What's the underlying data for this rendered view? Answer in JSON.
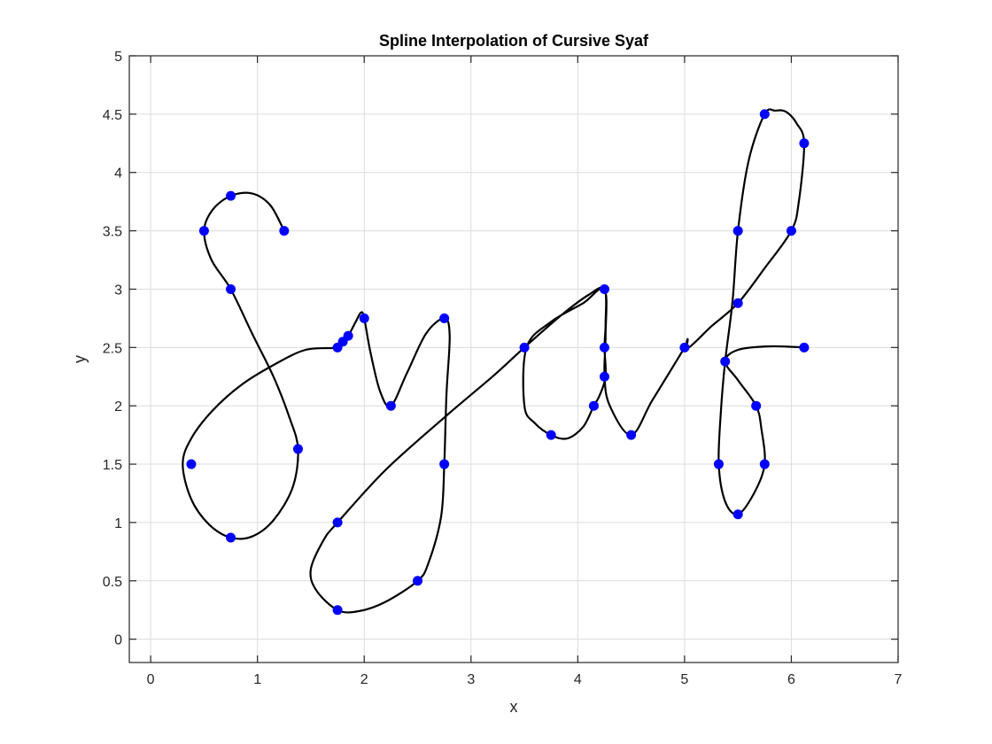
{
  "chart_data": {
    "type": "line",
    "title": "Spline Interpolation of Cursive Syaf",
    "xlabel": "x",
    "ylabel": "y",
    "xlim": [
      -0.2,
      7
    ],
    "ylim": [
      -0.2,
      5
    ],
    "xticks": [
      "0",
      "1",
      "2",
      "3",
      "4",
      "5",
      "6",
      "7"
    ],
    "yticks": [
      "0",
      "0.5",
      "1",
      "1.5",
      "2",
      "2.5",
      "3",
      "3.5",
      "4",
      "4.5",
      "5"
    ],
    "grid": true,
    "colors": {
      "curve": "#000000",
      "points": "#0000ff",
      "grid": "#dcdcdc",
      "axis": "#262626"
    },
    "series": [
      {
        "kind": "curve",
        "x": [
          1.25,
          1.12,
          0.95,
          0.75,
          0.58,
          0.5,
          0.57,
          0.75,
          0.95,
          1.15,
          1.3,
          1.38,
          1.33,
          1.15,
          0.95,
          0.75,
          0.55,
          0.38,
          0.3,
          0.38,
          0.58,
          0.85,
          1.15,
          1.45,
          1.75,
          1.8,
          1.85,
          1.92,
          1.97,
          2.0,
          2.06,
          2.15,
          2.25,
          2.4,
          2.58,
          2.75,
          2.8,
          2.77,
          2.75,
          2.72,
          2.6,
          2.5,
          2.2,
          1.95,
          1.75,
          1.55,
          1.5,
          1.62,
          1.75,
          2.2,
          2.75,
          3.2,
          3.5,
          3.85,
          4.1,
          4.25,
          4.26,
          4.25,
          4.26,
          4.2,
          4.15,
          4.05,
          3.9,
          3.75,
          3.6,
          3.5,
          3.52,
          3.75,
          4.05,
          4.25,
          4.26,
          4.25,
          4.3,
          4.5,
          4.7,
          5.0,
          5.02,
          5.03,
          5.04,
          5.25,
          5.5,
          5.75,
          6.0,
          6.07,
          6.12,
          6.05,
          5.95,
          5.85,
          5.75,
          5.6,
          5.5,
          5.45,
          5.38,
          5.34,
          5.32,
          5.38,
          5.5,
          5.65,
          5.75,
          5.72,
          5.67,
          5.5,
          5.38,
          5.5,
          5.8,
          6.12
        ],
        "y": [
          3.5,
          3.72,
          3.82,
          3.8,
          3.68,
          3.5,
          3.25,
          3.0,
          2.62,
          2.25,
          1.9,
          1.63,
          1.3,
          1.02,
          0.88,
          0.87,
          0.98,
          1.2,
          1.5,
          1.72,
          1.96,
          2.18,
          2.35,
          2.48,
          2.5,
          2.56,
          2.6,
          2.72,
          2.8,
          2.75,
          2.45,
          2.12,
          2.0,
          2.28,
          2.62,
          2.75,
          2.6,
          2.1,
          1.5,
          1.05,
          0.65,
          0.5,
          0.32,
          0.24,
          0.25,
          0.42,
          0.6,
          0.85,
          1.0,
          1.45,
          1.9,
          2.25,
          2.5,
          2.78,
          2.95,
          3.0,
          2.7,
          2.5,
          2.25,
          2.08,
          2.0,
          1.82,
          1.72,
          1.75,
          1.85,
          2.0,
          2.5,
          2.72,
          2.88,
          3.0,
          2.6,
          2.25,
          2.0,
          1.75,
          2.05,
          2.5,
          2.55,
          2.57,
          2.5,
          2.68,
          2.88,
          3.18,
          3.5,
          3.75,
          4.25,
          4.42,
          4.52,
          4.53,
          4.5,
          4.1,
          3.5,
          2.9,
          2.38,
          1.95,
          1.5,
          1.18,
          1.07,
          1.25,
          1.5,
          1.8,
          2.0,
          2.22,
          2.38,
          2.48,
          2.51,
          2.5
        ]
      },
      {
        "kind": "points",
        "x": [
          0.75,
          0.5,
          1.25,
          0.75,
          1.38,
          0.38,
          0.75,
          1.75,
          1.8,
          1.85,
          2.0,
          2.25,
          2.75,
          2.75,
          2.5,
          1.75,
          1.75,
          3.5,
          3.75,
          4.15,
          4.25,
          4.25,
          4.25,
          4.5,
          5.0,
          5.5,
          5.5,
          5.38,
          5.32,
          5.5,
          5.67,
          5.75,
          5.75,
          6.12,
          6.0,
          6.12
        ],
        "y": [
          3.8,
          3.5,
          3.5,
          3.0,
          1.63,
          1.5,
          0.87,
          2.5,
          2.55,
          2.6,
          2.75,
          2.0,
          2.75,
          1.5,
          0.5,
          0.25,
          1.0,
          2.5,
          1.75,
          2.0,
          2.25,
          2.5,
          3.0,
          1.75,
          2.5,
          2.88,
          3.5,
          2.38,
          1.5,
          1.07,
          2.0,
          1.5,
          4.5,
          4.25,
          3.5,
          2.5
        ]
      }
    ]
  }
}
